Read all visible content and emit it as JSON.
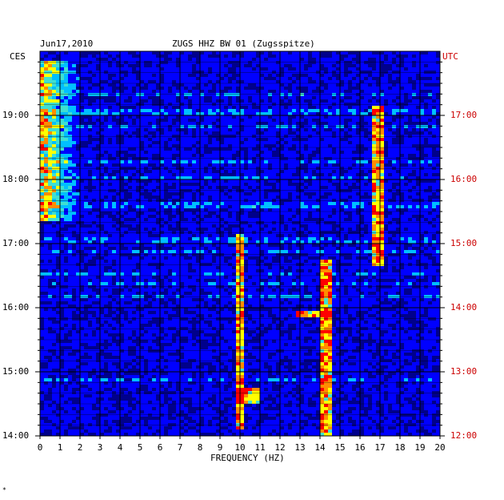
{
  "chart_data": {
    "type": "heatmap",
    "title_date": "Jun17,2010",
    "title_station": "ZUGS HHZ BW 01 (Zugsspitze)",
    "xlabel": "FREQUENCY (HZ)",
    "xlim": [
      0,
      20
    ],
    "x_ticks": [
      "0",
      "1",
      "2",
      "3",
      "4",
      "5",
      "6",
      "7",
      "8",
      "9",
      "10",
      "11",
      "12",
      "13",
      "14",
      "15",
      "16",
      "17",
      "18",
      "19",
      "20"
    ],
    "left_axis_label": "CES",
    "right_axis_label": "UTC",
    "left_ticks": [
      "19:00",
      "18:00",
      "17:00",
      "16:00",
      "15:00",
      "14:00"
    ],
    "right_ticks": [
      "17:00",
      "16:00",
      "15:00",
      "14:00",
      "13:00",
      "12:00"
    ],
    "time_range_ces": [
      "14:00",
      "19:50"
    ],
    "grid": true,
    "colormap": [
      "#00008b",
      "#0000ff",
      "#00bfff",
      "#40e0d0",
      "#ffff00",
      "#ff8c00",
      "#ff0000"
    ],
    "energy_features": [
      {
        "desc": "broadband low-frequency energy",
        "freq_hz": [
          0,
          2
        ],
        "time_ces": [
          "17:20",
          "19:50"
        ]
      },
      {
        "desc": "persistent line",
        "freq_hz": [
          16.8,
          17.0
        ],
        "time_ces": [
          "16:40",
          "19:10"
        ]
      },
      {
        "desc": "persistent line",
        "freq_hz": [
          14.2,
          14.4
        ],
        "time_ces": [
          "14:00",
          "16:45"
        ]
      },
      {
        "desc": "gliding line",
        "freq_hz": [
          9.8,
          10.2
        ],
        "time_ces": [
          "14:05",
          "17:10"
        ]
      },
      {
        "desc": "patch",
        "freq_hz": [
          10,
          11
        ],
        "time_ces": [
          "14:30",
          "14:45"
        ]
      },
      {
        "desc": "patch",
        "freq_hz": [
          13,
          14.5
        ],
        "time_ces": [
          "15:50",
          "15:57"
        ]
      }
    ]
  },
  "footer": {
    "mark": "*"
  }
}
